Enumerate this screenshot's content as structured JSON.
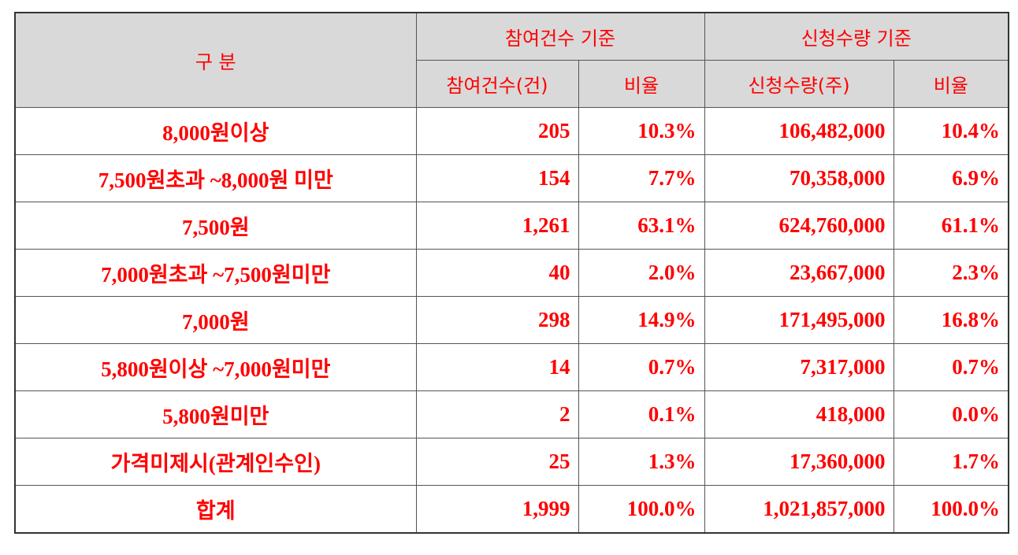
{
  "header": {
    "category_label": "구 분",
    "group_count": "참여건수 기준",
    "group_qty": "신청수량 기준",
    "col_count": "참여건수(건)",
    "col_count_ratio": "비율",
    "col_qty": "신청수량(주)",
    "col_qty_ratio": "비율"
  },
  "rows": [
    {
      "category": "8,000원이상",
      "count": "205",
      "count_ratio": "10.3%",
      "qty": "106,482,000",
      "qty_ratio": "10.4%"
    },
    {
      "category": "7,500원초과 ~8,000원 미만",
      "count": "154",
      "count_ratio": "7.7%",
      "qty": "70,358,000",
      "qty_ratio": "6.9%"
    },
    {
      "category": "7,500원",
      "count": "1,261",
      "count_ratio": "63.1%",
      "qty": "624,760,000",
      "qty_ratio": "61.1%"
    },
    {
      "category": "7,000원초과 ~7,500원미만",
      "count": "40",
      "count_ratio": "2.0%",
      "qty": "23,667,000",
      "qty_ratio": "2.3%"
    },
    {
      "category": "7,000원",
      "count": "298",
      "count_ratio": "14.9%",
      "qty": "171,495,000",
      "qty_ratio": "16.8%"
    },
    {
      "category": "5,800원이상 ~7,000원미만",
      "count": "14",
      "count_ratio": "0.7%",
      "qty": "7,317,000",
      "qty_ratio": "0.7%"
    },
    {
      "category": "5,800원미만",
      "count": "2",
      "count_ratio": "0.1%",
      "qty": "418,000",
      "qty_ratio": "0.0%"
    },
    {
      "category": "가격미제시(관계인수인)",
      "count": "25",
      "count_ratio": "1.3%",
      "qty": "17,360,000",
      "qty_ratio": "1.7%"
    },
    {
      "category": "합계",
      "count": "1,999",
      "count_ratio": "100.0%",
      "qty": "1,021,857,000",
      "qty_ratio": "100.0%"
    }
  ],
  "colors": {
    "text": "#ff0000",
    "header_bg": "#d9d9d9",
    "border": "#555555"
  }
}
